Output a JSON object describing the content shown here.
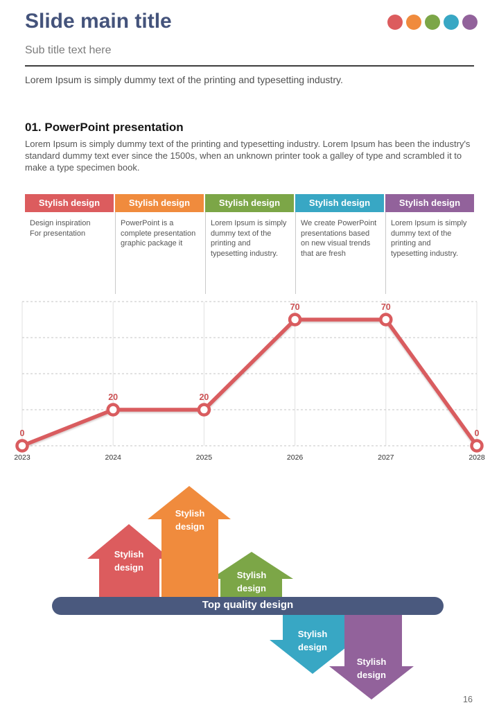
{
  "header": {
    "title": "Slide main title",
    "subtitle": "Sub title text here",
    "intro": "Lorem Ipsum is simply dummy text of the printing and typesetting industry.",
    "dot_colors": [
      "#DC5C5E",
      "#F08B3D",
      "#7CA647",
      "#38A7C4",
      "#92629B"
    ]
  },
  "section": {
    "heading": "01. PowerPoint presentation",
    "body": "Lorem Ipsum is simply dummy text of the printing and typesetting industry. Lorem Ipsum has been the industry's standard dummy text ever since the 1500s, when an unknown printer took a galley of type and scrambled it to make a type specimen book."
  },
  "table": {
    "columns": [
      {
        "header": "Stylish design",
        "color": "#DC5C5E",
        "body": "Design inspiration\nFor presentation"
      },
      {
        "header": "Stylish design",
        "color": "#F08B3D",
        "body": "PowerPoint is a complete presentation graphic package it"
      },
      {
        "header": "Stylish design",
        "color": "#7CA647",
        "body": "Lorem Ipsum is simply dummy text of the printing and typesetting industry."
      },
      {
        "header": "Stylish design",
        "color": "#38A7C4",
        "body": "We create PowerPoint presentations based on new visual trends that are fresh"
      },
      {
        "header": "Stylish design",
        "color": "#92629B",
        "body": "Lorem Ipsum is simply dummy text of the printing and typesetting industry."
      }
    ]
  },
  "chart_data": {
    "type": "line",
    "x": [
      "2023",
      "2024",
      "2025",
      "2026",
      "2027",
      "2028"
    ],
    "values": [
      0,
      20,
      20,
      70,
      70,
      0
    ],
    "title": "",
    "xlabel": "",
    "ylabel": "",
    "ylim": [
      0,
      80
    ],
    "grid_step": 20,
    "grid": "horizontal dashed + vertical solid",
    "legend": "none",
    "data_labels": [
      0,
      20,
      20,
      70,
      70,
      0
    ],
    "line_color": "#D95C5F",
    "label_color": "#CB5153"
  },
  "diagram": {
    "bar_label": "Top quality design",
    "bar_color": "#4A597E",
    "up_arrows": [
      {
        "label": "Stylish design",
        "color": "#DC5C5E"
      },
      {
        "label": "Stylish design",
        "color": "#F08B3D"
      },
      {
        "label": "Stylish design",
        "color": "#7CA647"
      }
    ],
    "down_arrows": [
      {
        "label": "Stylish design",
        "color": "#38A7C4"
      },
      {
        "label": "Stylish design",
        "color": "#92629B"
      }
    ]
  },
  "footer": {
    "page_number": "16"
  }
}
